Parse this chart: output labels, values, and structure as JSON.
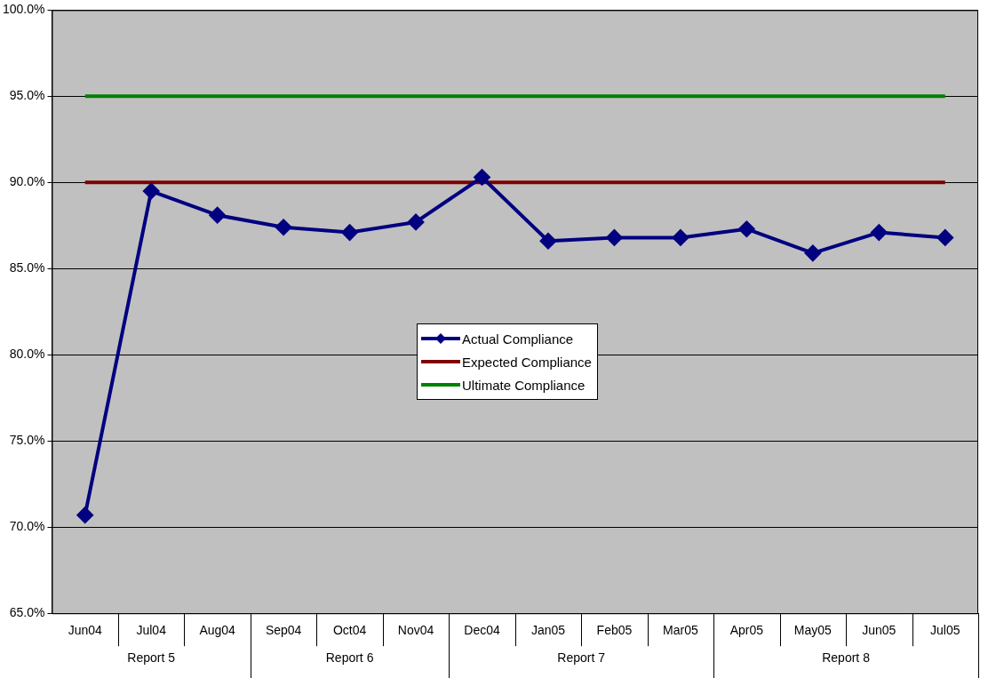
{
  "chart_data": {
    "type": "line",
    "categories": [
      "Jun04",
      "Jul04",
      "Aug04",
      "Sep04",
      "Oct04",
      "Nov04",
      "Dec04",
      "Jan05",
      "Feb05",
      "Mar05",
      "Apr05",
      "May05",
      "Jun05",
      "Jul05"
    ],
    "series": [
      {
        "name": "Actual Compliance",
        "color": "#000080",
        "marker": "diamond",
        "values": [
          70.7,
          89.5,
          88.1,
          87.4,
          87.1,
          87.7,
          90.3,
          86.6,
          86.8,
          86.8,
          87.3,
          85.9,
          87.1,
          86.8
        ]
      },
      {
        "name": "Expected Compliance",
        "color": "#800000",
        "marker": "none",
        "values": [
          90,
          90,
          90,
          90,
          90,
          90,
          90,
          90,
          90,
          90,
          90,
          90,
          90,
          90
        ]
      },
      {
        "name": "Ultimate Compliance",
        "color": "#008000",
        "marker": "none",
        "values": [
          95,
          95,
          95,
          95,
          95,
          95,
          95,
          95,
          95,
          95,
          95,
          95,
          95,
          95
        ]
      }
    ],
    "ylim": [
      65,
      100
    ],
    "yticks": [
      {
        "value": 65,
        "label": "65.0%"
      },
      {
        "value": 70,
        "label": "70.0%"
      },
      {
        "value": 75,
        "label": "75.0%"
      },
      {
        "value": 80,
        "label": "80.0%"
      },
      {
        "value": 85,
        "label": "85.0%"
      },
      {
        "value": 90,
        "label": "90.0%"
      },
      {
        "value": 95,
        "label": "95.0%"
      },
      {
        "value": 100,
        "label": "100.0%"
      }
    ],
    "grid": "y",
    "legend": "center",
    "annotations": [
      "Report 5",
      "Report 6",
      "Report 7",
      "Report 8"
    ]
  }
}
